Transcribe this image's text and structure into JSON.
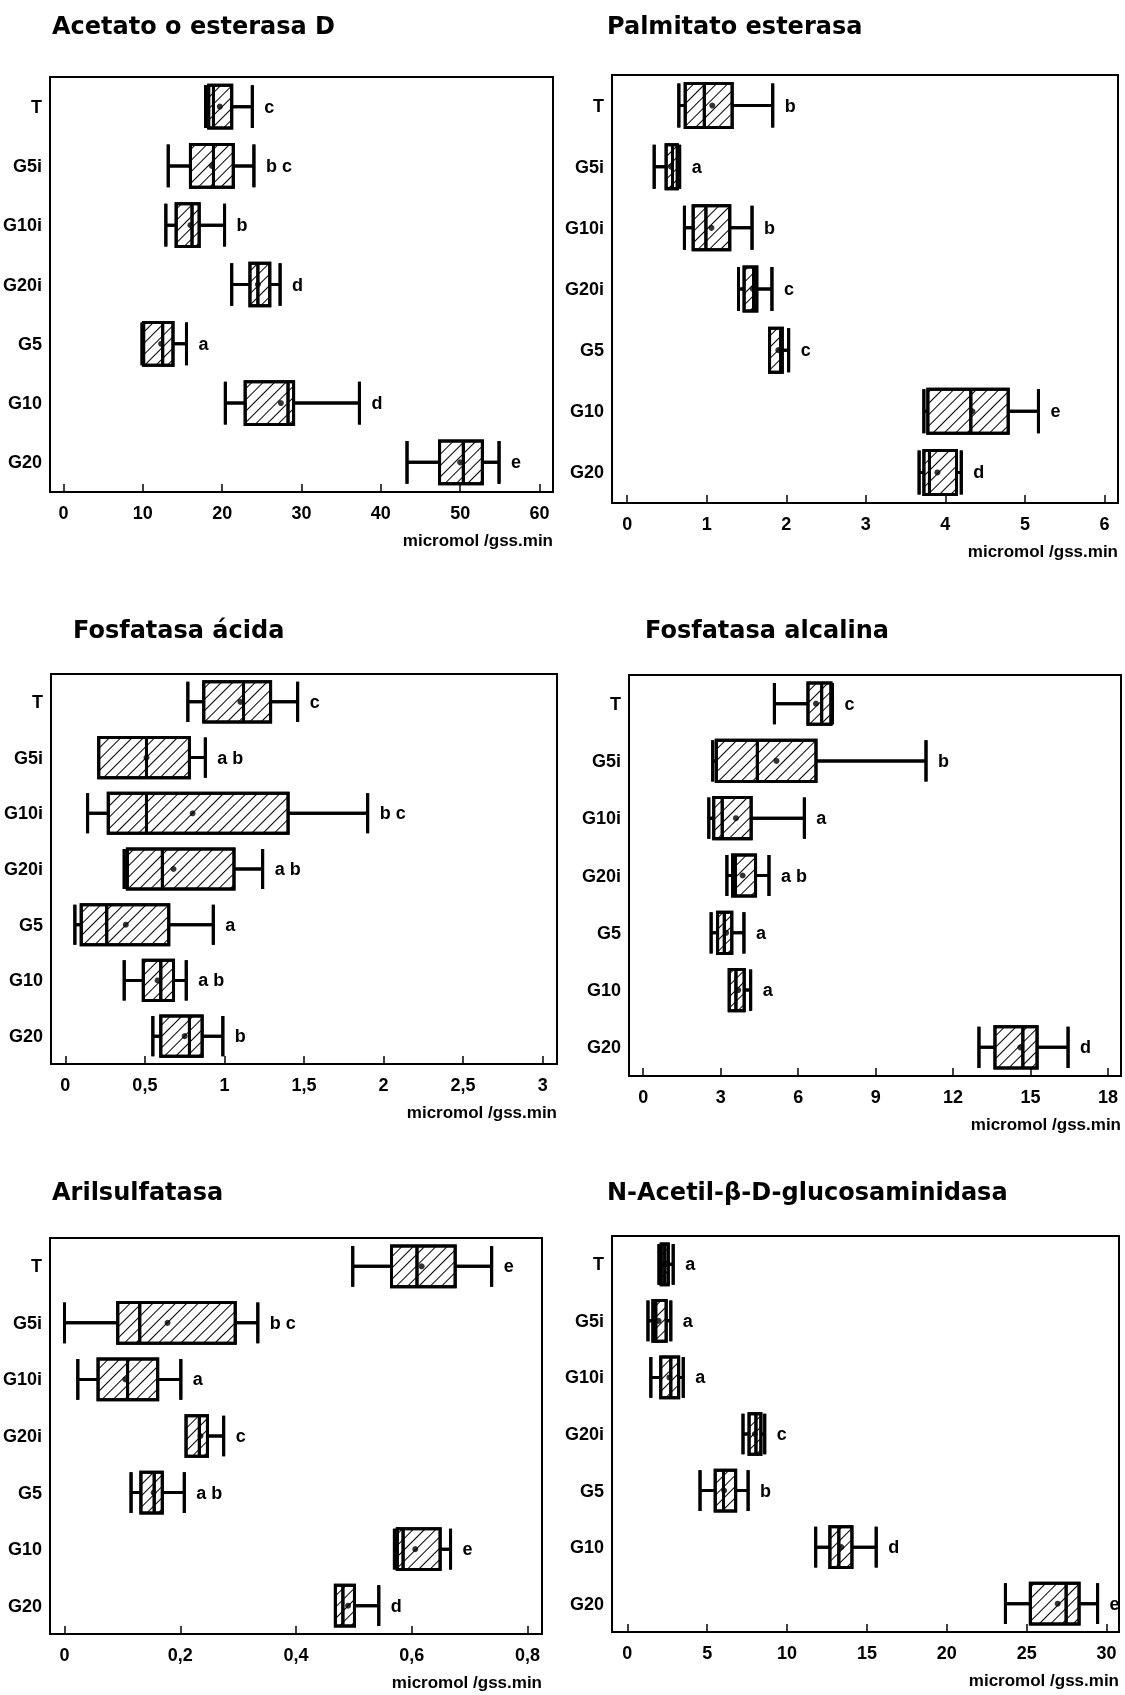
{
  "chart_data": [
    {
      "type": "box",
      "orientation": "horizontal",
      "title": "Acetato o esterasa D",
      "xlabel": "micromol /gss.min",
      "categories": [
        "T",
        "G5i",
        "G10i",
        "G20i",
        "G5",
        "G10",
        "G20"
      ],
      "xlim": [
        -1.7,
        61.7
      ],
      "xticks": [
        0,
        10,
        20,
        30,
        40,
        50,
        60
      ],
      "series": [
        {
          "color": "#000000",
          "boxes": [
            {
              "low": 17.9,
              "q1": 18.3,
              "median": 18.9,
              "q3": 21.2,
              "high": 23.8,
              "mean": 19.7
            },
            {
              "low": 13.2,
              "q1": 16.0,
              "median": 18.9,
              "q3": 21.4,
              "high": 24.0,
              "mean": 18.7
            },
            {
              "low": 12.9,
              "q1": 14.2,
              "median": 16.2,
              "q3": 17.1,
              "high": 20.3,
              "mean": 16.0
            },
            {
              "low": 21.2,
              "q1": 23.5,
              "median": 24.5,
              "q3": 26.0,
              "high": 27.3,
              "mean": 24.5
            },
            {
              "low": 9.9,
              "q1": 10.1,
              "median": 12.5,
              "q3": 13.8,
              "high": 15.5,
              "mean": 12.3
            },
            {
              "low": 20.4,
              "q1": 22.9,
              "median": 28.3,
              "q3": 29.0,
              "high": 37.3,
              "mean": 27.4
            },
            {
              "low": 43.3,
              "q1": 47.4,
              "median": 50.4,
              "q3": 52.8,
              "high": 54.9,
              "mean": 50.0
            }
          ]
        }
      ],
      "annotations": [
        {
          "text": "c",
          "x": 23.8,
          "y": "T"
        },
        {
          "text": "b c",
          "x": 24.0,
          "y": "G5i"
        },
        {
          "text": "b",
          "x": 20.3,
          "y": "G10i"
        },
        {
          "text": "d",
          "x": 27.3,
          "y": "G20i"
        },
        {
          "text": "a",
          "x": 15.5,
          "y": "G5"
        },
        {
          "text": "d",
          "x": 37.3,
          "y": "G10"
        },
        {
          "text": "e",
          "x": 54.9,
          "y": "G20"
        }
      ]
    },
    {
      "type": "box",
      "orientation": "horizontal",
      "title": "Palmitato esterasa",
      "xlabel": "micromol /gss.min",
      "categories": [
        "T",
        "G5i",
        "G10i",
        "G20i",
        "G5",
        "G10",
        "G20"
      ],
      "xlim": [
        -0.19,
        6.17
      ],
      "xticks": [
        0,
        1,
        2,
        3,
        4,
        5,
        6
      ],
      "series": [
        {
          "color": "#000000",
          "boxes": [
            {
              "low": 0.65,
              "q1": 0.73,
              "median": 0.97,
              "q3": 1.32,
              "high": 1.83,
              "mean": 1.07
            },
            {
              "low": 0.34,
              "q1": 0.49,
              "median": 0.57,
              "q3": 0.63,
              "high": 0.66,
              "mean": 0.55
            },
            {
              "low": 0.72,
              "q1": 0.83,
              "median": 0.99,
              "q3": 1.29,
              "high": 1.57,
              "mean": 1.06
            },
            {
              "low": 1.4,
              "q1": 1.47,
              "median": 1.59,
              "q3": 1.63,
              "high": 1.82,
              "mean": 1.58
            },
            {
              "low": 1.79,
              "q1": 1.79,
              "median": 1.93,
              "q3": 1.95,
              "high": 2.03,
              "mean": 1.9
            },
            {
              "low": 3.73,
              "q1": 3.78,
              "median": 4.32,
              "q3": 4.79,
              "high": 5.17,
              "mean": 4.34
            },
            {
              "low": 3.67,
              "q1": 3.73,
              "median": 3.8,
              "q3": 4.14,
              "high": 4.2,
              "mean": 3.9
            }
          ]
        }
      ],
      "annotations": [
        {
          "text": "b",
          "x": 1.83,
          "y": "T"
        },
        {
          "text": "a",
          "x": 0.66,
          "y": "G5i"
        },
        {
          "text": "b",
          "x": 1.57,
          "y": "G10i"
        },
        {
          "text": "c",
          "x": 1.82,
          "y": "G20i"
        },
        {
          "text": "c",
          "x": 2.03,
          "y": "G5"
        },
        {
          "text": "e",
          "x": 5.17,
          "y": "G10"
        },
        {
          "text": "d",
          "x": 4.2,
          "y": "G20"
        }
      ]
    },
    {
      "type": "box",
      "orientation": "horizontal",
      "title": "Fosfatasa ácida",
      "xlabel": "micromol /gss.min",
      "categories": [
        "T",
        "G5i",
        "G10i",
        "G20i",
        "G5",
        "G10",
        "G20"
      ],
      "xlim": [
        -0.09,
        3.09
      ],
      "xticks": [
        0,
        {
          "value": 0.5,
          "label": "0,5"
        },
        1,
        {
          "value": 1.5,
          "label": "1,5"
        },
        2,
        {
          "value": 2.5,
          "label": "2,5"
        },
        3
      ],
      "series": [
        {
          "color": "#000000",
          "boxes": [
            {
              "low": 0.77,
              "q1": 0.87,
              "median": 1.12,
              "q3": 1.29,
              "high": 1.46,
              "mean": 1.1
            },
            {
              "low": 0.21,
              "q1": 0.21,
              "median": 0.51,
              "q3": 0.78,
              "high": 0.88,
              "mean": 0.51
            },
            {
              "low": 0.14,
              "q1": 0.27,
              "median": 0.51,
              "q3": 1.4,
              "high": 1.9,
              "mean": 0.8
            },
            {
              "low": 0.37,
              "q1": 0.39,
              "median": 0.61,
              "q3": 1.06,
              "high": 1.24,
              "mean": 0.68
            },
            {
              "low": 0.06,
              "q1": 0.1,
              "median": 0.26,
              "q3": 0.65,
              "high": 0.93,
              "mean": 0.38
            },
            {
              "low": 0.37,
              "q1": 0.49,
              "median": 0.6,
              "q3": 0.68,
              "high": 0.76,
              "mean": 0.58
            },
            {
              "low": 0.55,
              "q1": 0.6,
              "median": 0.78,
              "q3": 0.86,
              "high": 0.99,
              "mean": 0.75
            }
          ]
        }
      ],
      "annotations": [
        {
          "text": "c",
          "x": 1.46,
          "y": "T"
        },
        {
          "text": "a b",
          "x": 0.88,
          "y": "G5i"
        },
        {
          "text": "b c",
          "x": 1.9,
          "y": "G10i"
        },
        {
          "text": "a b",
          "x": 1.24,
          "y": "G20i"
        },
        {
          "text": "a",
          "x": 0.93,
          "y": "G5"
        },
        {
          "text": "a b",
          "x": 0.76,
          "y": "G10"
        },
        {
          "text": "b",
          "x": 0.99,
          "y": "G20"
        }
      ]
    },
    {
      "type": "box",
      "orientation": "horizontal",
      "title": "Fosfatasa alcalina",
      "xlabel": "micromol /gss.min",
      "categories": [
        "T",
        "G5i",
        "G10i",
        "G20i",
        "G5",
        "G10",
        "G20"
      ],
      "xlim": [
        -0.55,
        18.5
      ],
      "xticks": [
        0,
        3,
        6,
        9,
        12,
        15,
        18
      ],
      "series": [
        {
          "color": "#000000",
          "boxes": [
            {
              "low": 5.08,
              "q1": 6.38,
              "median": 6.91,
              "q3": 7.27,
              "high": 7.33,
              "mean": 6.69
            },
            {
              "low": 2.69,
              "q1": 2.83,
              "median": 4.42,
              "q3": 6.69,
              "high": 10.95,
              "mean": 5.16
            },
            {
              "low": 2.54,
              "q1": 2.73,
              "median": 3.06,
              "q3": 4.18,
              "high": 6.24,
              "mean": 3.59
            },
            {
              "low": 3.24,
              "q1": 3.46,
              "median": 3.57,
              "q3": 4.35,
              "high": 4.87,
              "mean": 3.85
            },
            {
              "low": 2.63,
              "q1": 2.88,
              "median": 3.14,
              "q3": 3.43,
              "high": 3.9,
              "mean": 3.21
            },
            {
              "low": 3.33,
              "q1": 3.33,
              "median": 3.59,
              "q3": 3.91,
              "high": 4.16,
              "mean": 3.68
            },
            {
              "low": 13.0,
              "q1": 13.62,
              "median": 14.7,
              "q3": 15.25,
              "high": 16.45,
              "mean": 14.6
            }
          ]
        }
      ],
      "annotations": [
        {
          "text": "c",
          "x": 7.33,
          "y": "T"
        },
        {
          "text": "b",
          "x": 10.95,
          "y": "G5i"
        },
        {
          "text": "a",
          "x": 6.24,
          "y": "G10i"
        },
        {
          "text": "a b",
          "x": 4.87,
          "y": "G20i"
        },
        {
          "text": "a",
          "x": 3.9,
          "y": "G5"
        },
        {
          "text": "a",
          "x": 4.16,
          "y": "G10"
        },
        {
          "text": "d",
          "x": 16.45,
          "y": "G20"
        }
      ]
    },
    {
      "type": "box",
      "orientation": "horizontal",
      "title": "Arilsulfatasa",
      "xlabel": "micromol /gss.min",
      "categories": [
        "T",
        "G5i",
        "G10i",
        "G20i",
        "G5",
        "G10",
        "G20"
      ],
      "xlim": [
        -0.025,
        0.825
      ],
      "xticks": [
        0,
        {
          "value": 0.2,
          "label": "0,2"
        },
        {
          "value": 0.4,
          "label": "0,4"
        },
        {
          "value": 0.6,
          "label": "0,6"
        },
        {
          "value": 0.8,
          "label": "0,8"
        }
      ],
      "series": [
        {
          "color": "#000000",
          "boxes": [
            {
              "low": 0.498,
              "q1": 0.565,
              "median": 0.609,
              "q3": 0.675,
              "high": 0.738,
              "mean": 0.617
            },
            {
              "low": 0.0,
              "q1": 0.092,
              "median": 0.13,
              "q3": 0.295,
              "high": 0.334,
              "mean": 0.178
            },
            {
              "low": 0.023,
              "q1": 0.058,
              "median": 0.109,
              "q3": 0.161,
              "high": 0.201,
              "mean": 0.105
            },
            {
              "low": 0.21,
              "q1": 0.21,
              "median": 0.233,
              "q3": 0.247,
              "high": 0.275,
              "mean": 0.235
            },
            {
              "low": 0.115,
              "q1": 0.132,
              "median": 0.155,
              "q3": 0.169,
              "high": 0.207,
              "mean": 0.154
            },
            {
              "low": 0.57,
              "q1": 0.575,
              "median": 0.585,
              "q3": 0.649,
              "high": 0.667,
              "mean": 0.606
            },
            {
              "low": 0.468,
              "q1": 0.468,
              "median": 0.481,
              "q3": 0.501,
              "high": 0.543,
              "mean": 0.49
            }
          ]
        }
      ],
      "annotations": [
        {
          "text": "e",
          "x": 0.738,
          "y": "T"
        },
        {
          "text": "b c",
          "x": 0.334,
          "y": "G5i"
        },
        {
          "text": "a",
          "x": 0.201,
          "y": "G10i"
        },
        {
          "text": "c",
          "x": 0.275,
          "y": "G20i"
        },
        {
          "text": "a b",
          "x": 0.207,
          "y": "G5"
        },
        {
          "text": "e",
          "x": 0.667,
          "y": "G10"
        },
        {
          "text": "d",
          "x": 0.543,
          "y": "G20"
        }
      ]
    },
    {
      "type": "box",
      "orientation": "horizontal",
      "title": "N-Acetil-β-D-glucosaminidasa",
      "xlabel": "micromol /gss.min",
      "categories": [
        "T",
        "G5i",
        "G10i",
        "G20i",
        "G5",
        "G10",
        "G20"
      ],
      "xlim": [
        -0.96,
        30.78
      ],
      "xticks": [
        0,
        5,
        10,
        15,
        20,
        25,
        30
      ],
      "series": [
        {
          "color": "#000000",
          "boxes": [
            {
              "low": 1.98,
              "q1": 2.12,
              "median": 2.34,
              "q3": 2.56,
              "high": 2.87,
              "mean": 2.34
            },
            {
              "low": 1.29,
              "q1": 1.6,
              "median": 1.78,
              "q3": 2.43,
              "high": 2.72,
              "mean": 1.96
            },
            {
              "low": 1.47,
              "q1": 2.09,
              "median": 2.72,
              "q3": 3.21,
              "high": 3.5,
              "mean": 2.63
            },
            {
              "low": 7.24,
              "q1": 7.62,
              "median": 8.05,
              "q3": 8.36,
              "high": 8.6,
              "mean": 7.98
            },
            {
              "low": 4.55,
              "q1": 5.5,
              "median": 6.02,
              "q3": 6.78,
              "high": 7.56,
              "mean": 6.06
            },
            {
              "low": 11.79,
              "q1": 12.68,
              "median": 13.24,
              "q3": 14.06,
              "high": 15.58,
              "mean": 13.39
            },
            {
              "low": 23.67,
              "q1": 25.23,
              "median": 27.47,
              "q3": 28.28,
              "high": 29.44,
              "mean": 26.94
            }
          ]
        }
      ],
      "annotations": [
        {
          "text": "a",
          "x": 2.87,
          "y": "T"
        },
        {
          "text": "a",
          "x": 2.72,
          "y": "G5i"
        },
        {
          "text": "a",
          "x": 3.5,
          "y": "G10i"
        },
        {
          "text": "c",
          "x": 8.6,
          "y": "G20i"
        },
        {
          "text": "b",
          "x": 7.56,
          "y": "G5"
        },
        {
          "text": "d",
          "x": 15.58,
          "y": "G10"
        },
        {
          "text": "e",
          "x": 29.44,
          "y": "G20"
        }
      ]
    }
  ]
}
